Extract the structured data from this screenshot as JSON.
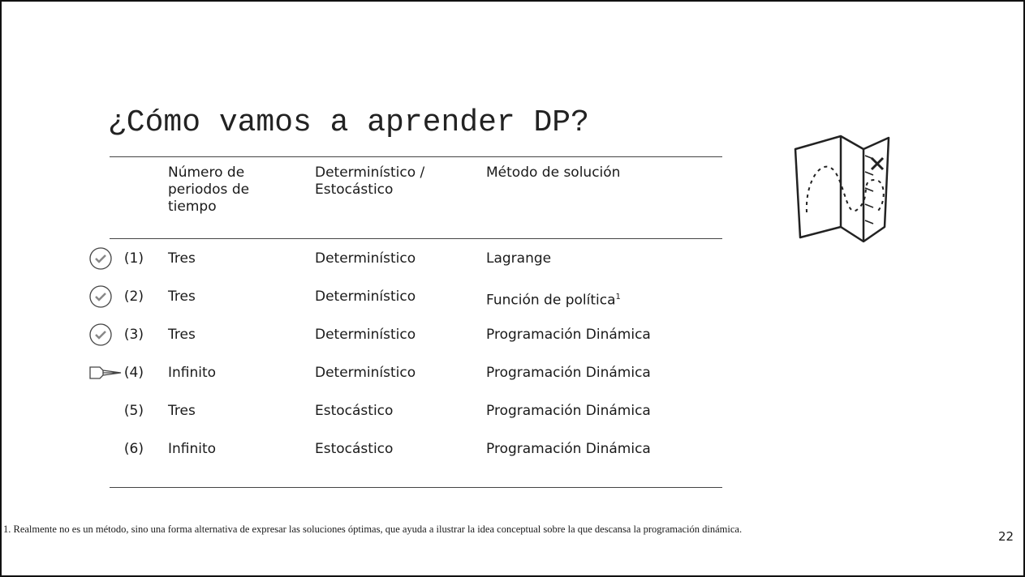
{
  "title": "¿Cómo vamos a aprender DP?",
  "table": {
    "header": [
      "Número de periodos de tiempo",
      "Determinístico / Estocástico",
      "Método de solución"
    ],
    "rows": [
      [
        "(1)",
        "Tres",
        "Determinístico",
        "Lagrange"
      ],
      [
        "(2)",
        "Tres",
        "Determinístico",
        "Función de política"
      ],
      [
        "(3)",
        "Tres",
        "Determinístico",
        "Programación Dinámica"
      ],
      [
        "(4)",
        "Infinito",
        "Determinístico",
        "Programación Dinámica"
      ],
      [
        "(5)",
        "Tres",
        "Estocástico",
        "Programación Dinámica"
      ],
      [
        "(6)",
        "Infinito",
        "Estocástico",
        "Programación Dinámica"
      ]
    ],
    "footnote_ref": "1"
  },
  "footnote": "1. Realmente no es un método, sino una forma alternativa de expresar las soluciones óptimas, que ayuda a ilustrar la idea conceptual sobre la que descansa la programación dinámica.",
  "page_number": "22"
}
